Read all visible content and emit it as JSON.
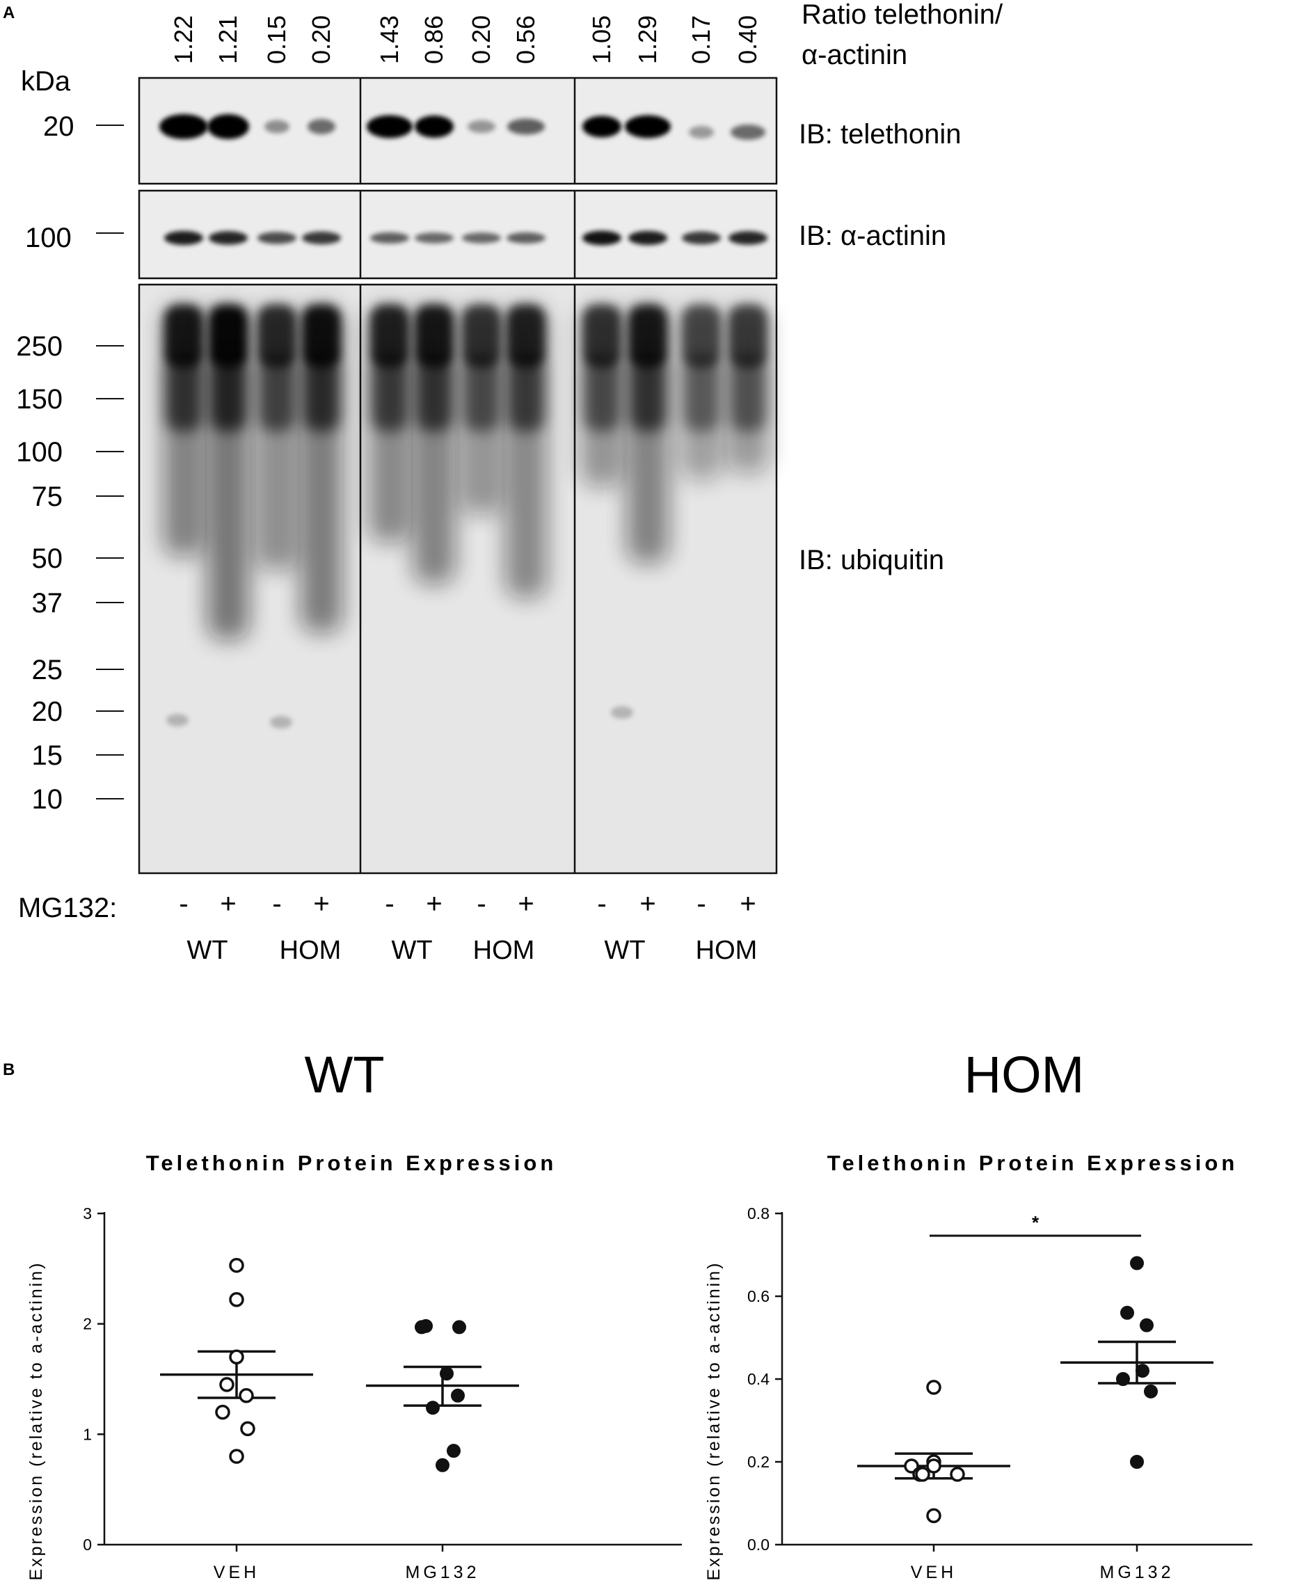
{
  "panel_a": {
    "label": "A",
    "ratio_title_line1": "Ratio telethonin/",
    "ratio_title_line2": "α-actinin",
    "ratios": [
      "1.22",
      "1.21",
      "0.15",
      "0.20",
      "1.43",
      "0.86",
      "0.20",
      "0.56",
      "1.05",
      "1.29",
      "0.17",
      "0.40"
    ],
    "kda_label": "kDa",
    "marker_telethonin": "20",
    "marker_actinin": "100",
    "markers_ubiquitin": [
      "250",
      "150",
      "100",
      "75",
      "50",
      "37",
      "25",
      "20",
      "15",
      "10"
    ],
    "blot_labels": {
      "telethonin": "IB: telethonin",
      "actinin": "IB: α-actinin",
      "ubiquitin": "IB: ubiquitin"
    },
    "treatment_label": "MG132:",
    "treatment_signs": [
      "-",
      "+",
      "-",
      "+",
      "-",
      "+",
      "-",
      "+",
      "-",
      "+",
      "-",
      "+"
    ],
    "group_labels": [
      "WT",
      "HOM",
      "WT",
      "HOM",
      "WT",
      "HOM"
    ]
  },
  "panel_b": {
    "label": "B",
    "wt_title": "WT",
    "hom_title": "HOM"
  },
  "chart_data": [
    {
      "type": "scatter",
      "group": "WT",
      "title": "Telethonin Protein Expression",
      "ylabel": "Expression (relative to a-actinin)",
      "categories": [
        "VEH",
        "MG132"
      ],
      "ylim": [
        0,
        3
      ],
      "yticks": [
        "0",
        "1",
        "2",
        "3"
      ],
      "series": [
        {
          "category": "VEH",
          "fill": "open",
          "values": [
            2.53,
            2.22,
            1.7,
            1.45,
            1.35,
            1.2,
            1.05,
            0.8
          ],
          "mean": 1.54,
          "sem_upper": 1.75,
          "sem_lower": 1.33
        },
        {
          "category": "MG132",
          "fill": "filled",
          "values": [
            1.98,
            1.97,
            1.97,
            1.55,
            1.35,
            1.24,
            0.85,
            0.72
          ],
          "mean": 1.44,
          "sem_upper": 1.61,
          "sem_lower": 1.26
        }
      ],
      "significance": ""
    },
    {
      "type": "scatter",
      "group": "HOM",
      "title": "Telethonin Protein Expression",
      "ylabel": "Expression (relative to a-actinin)",
      "categories": [
        "VEH",
        "MG132"
      ],
      "ylim": [
        0,
        0.8
      ],
      "yticks": [
        "0.0",
        "0.2",
        "0.4",
        "0.6",
        "0.8"
      ],
      "series": [
        {
          "category": "VEH",
          "fill": "open",
          "values": [
            0.38,
            0.2,
            0.19,
            0.19,
            0.17,
            0.17,
            0.17,
            0.07
          ],
          "mean": 0.19,
          "sem_upper": 0.22,
          "sem_lower": 0.16
        },
        {
          "category": "MG132",
          "fill": "filled",
          "values": [
            0.68,
            0.56,
            0.53,
            0.42,
            0.4,
            0.37,
            0.2
          ],
          "mean": 0.44,
          "sem_upper": 0.49,
          "sem_lower": 0.39
        }
      ],
      "significance": "*"
    }
  ]
}
